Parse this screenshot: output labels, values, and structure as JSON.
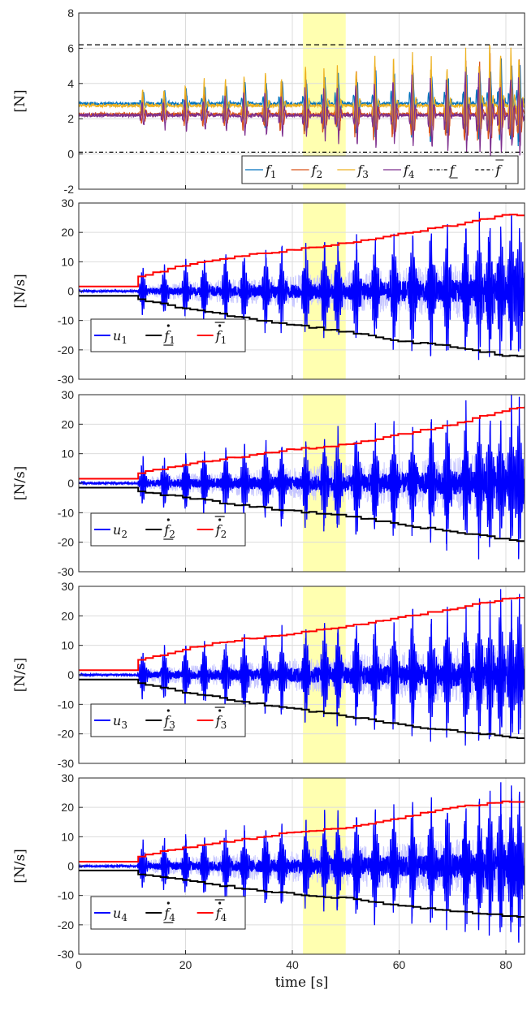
{
  "chart_data": [
    {
      "type": "line",
      "ylabel": "[N]",
      "xlim": [
        0,
        83.5
      ],
      "ylim": [
        -2,
        8
      ],
      "yticks": [
        "-2",
        "0",
        "2",
        "4",
        "6",
        "8"
      ],
      "grid": true,
      "highlight_x": [
        42,
        50
      ],
      "highlight_color": "#ffffb0",
      "legend_placement": "bottom-right",
      "legend_orientation": "horizontal",
      "series": [
        {
          "name": "f1",
          "sub": "1",
          "kind": "force",
          "base": 2.85,
          "color": "#0072bd",
          "style": "solid"
        },
        {
          "name": "f2",
          "sub": "2",
          "kind": "force",
          "base": 2.25,
          "color": "#d95319",
          "style": "solid"
        },
        {
          "name": "f3",
          "sub": "3",
          "kind": "force",
          "base": 2.75,
          "color": "#edb120",
          "style": "solid"
        },
        {
          "name": "f4",
          "sub": "4",
          "kind": "force",
          "base": 2.2,
          "color": "#7e2f8e",
          "style": "solid"
        },
        {
          "name": "f (lower bound)",
          "kind": "const",
          "value": 0.1,
          "color": "#000000",
          "style": "dashdot",
          "symbol": "f",
          "decor": "under"
        },
        {
          "name": "f (upper bound)",
          "kind": "const",
          "value": 6.2,
          "color": "#000000",
          "style": "dash",
          "symbol": "f",
          "decor": "over"
        }
      ]
    },
    {
      "type": "line",
      "ylabel": "[N/s]",
      "xlim": [
        0,
        83.5
      ],
      "ylim": [
        -30,
        30
      ],
      "yticks": [
        "-30",
        "-20",
        "-10",
        "0",
        "10",
        "20",
        "30"
      ],
      "grid": true,
      "highlight_x": [
        42,
        50
      ],
      "highlight_color": "#ffffb0",
      "legend_placement": "bottom-left",
      "legend_orientation": "horizontal",
      "series": [
        {
          "name": "u1",
          "sub": "1",
          "kind": "rate",
          "color": "#0000ff",
          "style": "solid"
        },
        {
          "name": "f_dot lower 1",
          "sub": "1",
          "kind": "bound_low",
          "color": "#000000",
          "style": "solid",
          "symbol": "f",
          "decor": "dot-under"
        },
        {
          "name": "f_dot upper 1",
          "sub": "1",
          "kind": "bound_high",
          "color": "#ff0000",
          "style": "solid",
          "symbol": "f",
          "decor": "dot-over"
        }
      ],
      "bound_points": {
        "x": [
          0,
          10,
          20,
          30,
          40,
          50,
          60,
          70,
          80,
          83.5
        ],
        "upper": [
          1.6,
          4.5,
          9.0,
          12.0,
          14.0,
          16.5,
          19.5,
          22.5,
          26.0,
          26.0
        ],
        "lower": [
          -1.6,
          -2.5,
          -6.0,
          -9.0,
          -11.5,
          -14.0,
          -17.0,
          -19.0,
          -22.0,
          -22.0
        ]
      }
    },
    {
      "type": "line",
      "ylabel": "[N/s]",
      "xlim": [
        0,
        83.5
      ],
      "ylim": [
        -30,
        30
      ],
      "yticks": [
        "-30",
        "-20",
        "-10",
        "0",
        "10",
        "20",
        "30"
      ],
      "grid": true,
      "highlight_x": [
        42,
        50
      ],
      "highlight_color": "#ffffb0",
      "legend_placement": "bottom-left",
      "legend_orientation": "horizontal",
      "series": [
        {
          "name": "u2",
          "sub": "2",
          "kind": "rate",
          "color": "#0000ff",
          "style": "solid"
        },
        {
          "name": "f_dot lower 2",
          "sub": "2",
          "kind": "bound_low",
          "color": "#000000",
          "style": "solid",
          "symbol": "f",
          "decor": "dot-under"
        },
        {
          "name": "f_dot upper 2",
          "sub": "2",
          "kind": "bound_high",
          "color": "#ff0000",
          "style": "solid",
          "symbol": "f",
          "decor": "dot-over"
        }
      ],
      "bound_points": {
        "x": [
          0,
          10,
          20,
          30,
          40,
          50,
          60,
          70,
          80,
          83.5
        ],
        "upper": [
          1.5,
          3.0,
          6.5,
          9.0,
          11.5,
          13.0,
          16.5,
          20.0,
          25.0,
          26.0
        ],
        "lower": [
          -1.5,
          -2.5,
          -5.0,
          -7.5,
          -9.5,
          -11.0,
          -14.0,
          -16.5,
          -19.0,
          -19.5
        ]
      }
    },
    {
      "type": "line",
      "ylabel": "[N/s]",
      "xlim": [
        0,
        83.5
      ],
      "ylim": [
        -30,
        30
      ],
      "yticks": [
        "-30",
        "-20",
        "-10",
        "0",
        "10",
        "20",
        "30"
      ],
      "grid": true,
      "highlight_x": [
        42,
        50
      ],
      "highlight_color": "#ffffb0",
      "legend_placement": "bottom-left",
      "legend_orientation": "horizontal",
      "series": [
        {
          "name": "u3",
          "sub": "3",
          "kind": "rate",
          "color": "#0000ff",
          "style": "solid"
        },
        {
          "name": "f_dot lower 3",
          "sub": "3",
          "kind": "bound_low",
          "color": "#000000",
          "style": "solid",
          "symbol": "f",
          "decor": "dot-under"
        },
        {
          "name": "f_dot upper 3",
          "sub": "3",
          "kind": "bound_high",
          "color": "#ff0000",
          "style": "solid",
          "symbol": "f",
          "decor": "dot-over"
        }
      ],
      "bound_points": {
        "x": [
          0,
          10,
          20,
          30,
          40,
          50,
          60,
          70,
          80,
          83.5
        ],
        "upper": [
          1.6,
          4.5,
          9.0,
          12.0,
          14.0,
          16.5,
          19.5,
          22.5,
          26.0,
          26.0
        ],
        "lower": [
          -1.6,
          -2.5,
          -6.0,
          -9.0,
          -11.5,
          -14.0,
          -17.0,
          -19.0,
          -21.0,
          -21.5
        ]
      }
    },
    {
      "type": "line",
      "ylabel": "[N/s]",
      "xlabel": "time [s]",
      "xlim": [
        0,
        83.5
      ],
      "ylim": [
        -30,
        30
      ],
      "yticks": [
        "-30",
        "-20",
        "-10",
        "0",
        "10",
        "20",
        "30"
      ],
      "xticks": [
        "0",
        "20",
        "40",
        "60",
        "80"
      ],
      "grid": true,
      "highlight_x": [
        42,
        50
      ],
      "highlight_color": "#ffffb0",
      "legend_placement": "bottom-left",
      "legend_orientation": "horizontal",
      "series": [
        {
          "name": "u4",
          "sub": "4",
          "kind": "rate",
          "color": "#0000ff",
          "style": "solid"
        },
        {
          "name": "f_dot lower 4",
          "sub": "4",
          "kind": "bound_low",
          "color": "#000000",
          "style": "solid",
          "symbol": "f",
          "decor": "dot-under"
        },
        {
          "name": "f_dot upper 4",
          "sub": "4",
          "kind": "bound_high",
          "color": "#ff0000",
          "style": "solid",
          "symbol": "f",
          "decor": "dot-over"
        }
      ],
      "bound_points": {
        "x": [
          0,
          10,
          20,
          30,
          40,
          50,
          60,
          70,
          80,
          83.5
        ],
        "upper": [
          1.5,
          3.0,
          6.5,
          9.0,
          11.5,
          13.0,
          16.5,
          20.0,
          22.0,
          22.0
        ],
        "lower": [
          -1.5,
          -2.5,
          -5.0,
          -7.5,
          -9.5,
          -11.0,
          -13.5,
          -15.5,
          -17.0,
          -17.0
        ]
      }
    }
  ],
  "spike_times": [
    12,
    16,
    20,
    23.5,
    27.5,
    31,
    35,
    38,
    42.5,
    46,
    48.5,
    52,
    55.5,
    59,
    62.5,
    66,
    69,
    72.5,
    75,
    77,
    79,
    81,
    82.5
  ]
}
